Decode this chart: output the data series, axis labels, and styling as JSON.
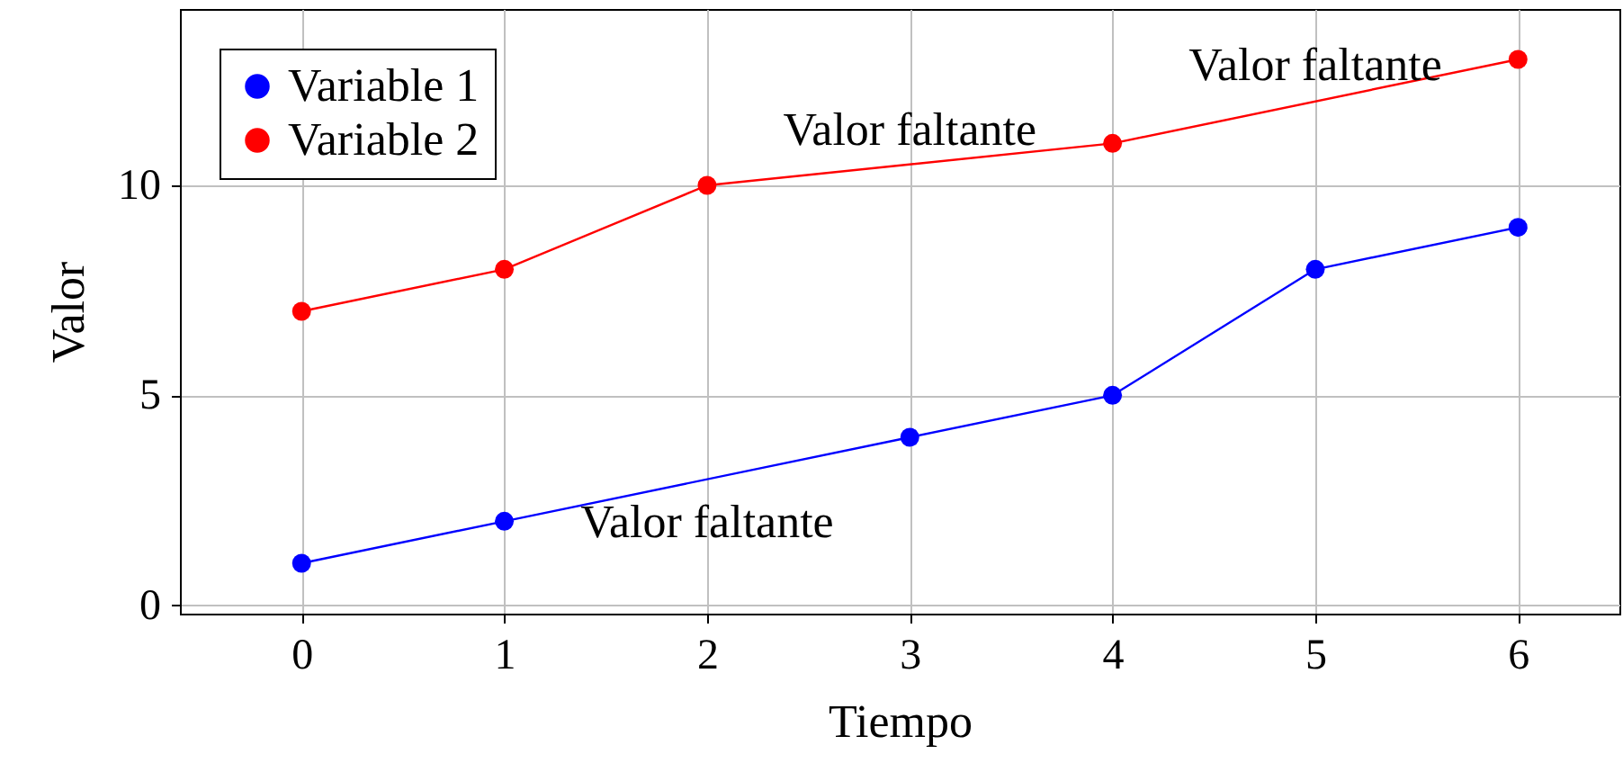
{
  "chart_data": {
    "type": "line",
    "xlabel": "Tiempo",
    "ylabel": "Valor",
    "xlim": [
      -0.6,
      6.5
    ],
    "ylim": [
      -0.2,
      14.2
    ],
    "xticks": [
      0,
      1,
      2,
      3,
      4,
      5,
      6
    ],
    "yticks": [
      0,
      5,
      10
    ],
    "grid": true,
    "legend": "top left",
    "marker": "circle",
    "line_style": "solid",
    "series": [
      {
        "name": "Variable 1",
        "color": "#0000ff",
        "x": [
          0,
          1,
          3,
          4,
          5,
          6
        ],
        "values": [
          1,
          2,
          4,
          5,
          8,
          9
        ]
      },
      {
        "name": "Variable 2",
        "color": "#ff0000",
        "x": [
          0,
          1,
          2,
          4,
          6
        ],
        "values": [
          7,
          8,
          10,
          11,
          13
        ]
      }
    ],
    "annotations": [
      {
        "text": "Valor faltante",
        "x": 2,
        "y": 3
      },
      {
        "text": "Valor faltante",
        "x": 3,
        "y": 10.5
      },
      {
        "text": "Valor faltante",
        "x": 5,
        "y": 12
      }
    ]
  }
}
